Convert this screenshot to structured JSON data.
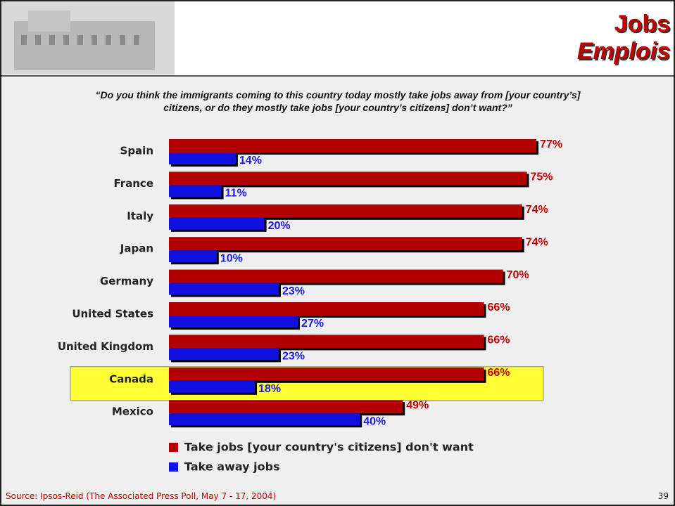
{
  "chart_data": {
    "type": "bar",
    "orientation": "horizontal",
    "title": "Jobs",
    "subtitle": "Emplois",
    "question": [
      "“Do you think the immigrants coming to this country today mostly take jobs away from [your country’s]",
      "citizens, or do they mostly take jobs [your country’s citizens] don’t want?”"
    ],
    "categories": [
      "Spain",
      "France",
      "Italy",
      "Japan",
      "Germany",
      "United States",
      "United Kingdom",
      "Canada",
      "Mexico"
    ],
    "series": [
      {
        "name": "Take jobs [your country's citizens] don't want",
        "color": "#b30000",
        "label_color": "#c00000",
        "values": [
          77,
          75,
          74,
          74,
          70,
          66,
          66,
          66,
          49
        ],
        "value_labels": [
          "77%",
          "75%",
          "74%",
          "74%",
          "70%",
          "66%",
          "66%",
          "66%",
          "49%"
        ]
      },
      {
        "name": "Take away jobs",
        "color": "#1010e0",
        "label_color": "#1a1aee",
        "values": [
          14,
          11,
          20,
          10,
          23,
          27,
          23,
          18,
          40
        ],
        "value_labels": [
          "14%",
          "11%",
          "20%",
          "10%",
          "23%",
          "27%",
          "23%",
          "18%",
          "40%"
        ]
      }
    ],
    "xlim": [
      0,
      100
    ],
    "highlight_category": "Canada",
    "highlight_color": "#ffff33",
    "legend": "bottom",
    "source": "Source: Ipsos-Reid (The Associated Press Poll, May 7 - 17, 2004)",
    "page_number": "39"
  }
}
